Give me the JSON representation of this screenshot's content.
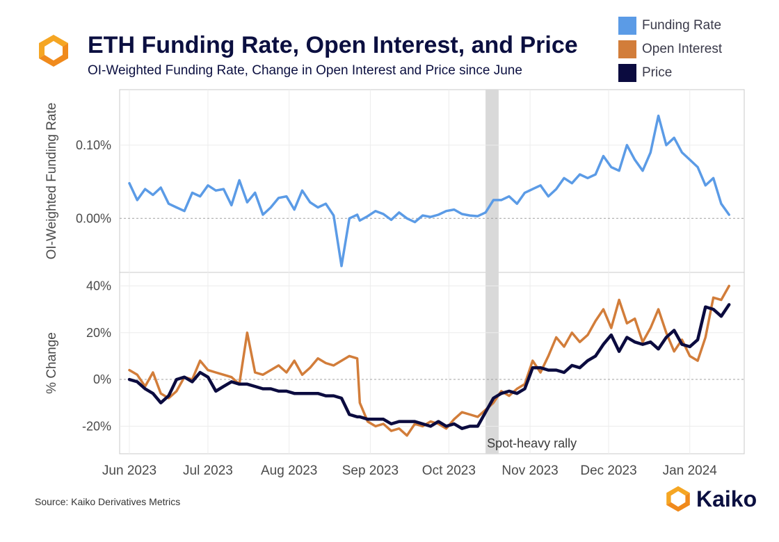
{
  "header": {
    "title": "ETH Funding Rate, Open Interest, and Price",
    "subtitle": "OI-Weighted Funding Rate, Change in Open Interest and Price since June"
  },
  "legend": [
    {
      "label": "Funding Rate",
      "color": "#5b9be6"
    },
    {
      "label": "Open Interest",
      "color": "#d27d3a"
    },
    {
      "label": "Price",
      "color": "#0b0b3f"
    }
  ],
  "footer": {
    "source": "Source: Kaiko Derivatives Metrics",
    "brand": "Kaiko"
  },
  "chart_data": {
    "type": "line",
    "grid": true,
    "x_ticks": [
      "Jun 2023",
      "Jul 2023",
      "Aug 2023",
      "Sep 2023",
      "Oct 2023",
      "Nov 2023",
      "Dec 2023",
      "Jan 2024"
    ],
    "x_tick_days": [
      0,
      30,
      61,
      92,
      122,
      153,
      183,
      214
    ],
    "x_range_days": [
      0,
      230
    ],
    "annotation": {
      "label": "Spot-heavy rally",
      "day_start": 136,
      "day_end": 141
    },
    "panels": [
      {
        "ylabel": "OI-Weighted Funding Rate",
        "ylim": [
          -0.068,
          0.17
        ],
        "y_ticks": [
          0.0,
          0.1
        ],
        "y_tick_labels": [
          "0.00%",
          "0.10%"
        ],
        "series": [
          {
            "name": "Funding Rate",
            "color": "#5b9be6",
            "x": [
              0,
              3,
              6,
              9,
              12,
              15,
              18,
              21,
              24,
              27,
              30,
              33,
              36,
              39,
              42,
              45,
              48,
              51,
              54,
              57,
              60,
              63,
              66,
              69,
              72,
              75,
              78,
              81,
              84,
              87,
              88,
              91,
              94,
              97,
              100,
              103,
              106,
              109,
              112,
              115,
              118,
              121,
              124,
              127,
              130,
              133,
              136,
              139,
              142,
              145,
              148,
              151,
              154,
              157,
              160,
              163,
              166,
              169,
              172,
              175,
              178,
              181,
              184,
              187,
              190,
              193,
              196,
              199,
              202,
              205,
              208,
              211,
              214,
              217,
              220,
              223,
              226,
              229
            ],
            "y": [
              0.048,
              0.025,
              0.04,
              0.032,
              0.042,
              0.02,
              0.015,
              0.01,
              0.035,
              0.03,
              0.045,
              0.038,
              0.04,
              0.018,
              0.052,
              0.022,
              0.035,
              0.005,
              0.015,
              0.028,
              0.03,
              0.012,
              0.038,
              0.022,
              0.015,
              0.02,
              0.004,
              -0.065,
              0.0,
              0.005,
              -0.003,
              0.003,
              0.01,
              0.006,
              -0.002,
              0.008,
              0.0,
              -0.005,
              0.004,
              0.002,
              0.005,
              0.01,
              0.012,
              0.006,
              0.004,
              0.003,
              0.008,
              0.025,
              0.025,
              0.03,
              0.02,
              0.035,
              0.04,
              0.045,
              0.03,
              0.04,
              0.055,
              0.048,
              0.06,
              0.055,
              0.06,
              0.085,
              0.07,
              0.065,
              0.1,
              0.08,
              0.065,
              0.09,
              0.14,
              0.1,
              0.11,
              0.09,
              0.08,
              0.07,
              0.045,
              0.055,
              0.02,
              0.005
            ]
          }
        ]
      },
      {
        "ylabel": "% Change",
        "ylim": [
          -30,
          44
        ],
        "y_ticks": [
          -20,
          0,
          20,
          40
        ],
        "y_tick_labels": [
          "-20%",
          "0%",
          "20%",
          "40%"
        ],
        "series": [
          {
            "name": "Open Interest",
            "color": "#d27d3a",
            "x": [
              0,
              3,
              6,
              9,
              12,
              15,
              18,
              21,
              24,
              27,
              30,
              33,
              36,
              39,
              42,
              45,
              48,
              51,
              54,
              57,
              60,
              63,
              66,
              69,
              72,
              75,
              78,
              81,
              84,
              87,
              88,
              91,
              94,
              97,
              100,
              103,
              106,
              109,
              112,
              115,
              118,
              121,
              124,
              127,
              130,
              133,
              136,
              139,
              142,
              145,
              148,
              151,
              154,
              157,
              160,
              163,
              166,
              169,
              172,
              175,
              178,
              181,
              184,
              187,
              190,
              193,
              196,
              199,
              202,
              205,
              208,
              211,
              214,
              217,
              220,
              223,
              226,
              229
            ],
            "y": [
              4,
              2,
              -3,
              3,
              -6,
              -8,
              -5,
              1,
              0,
              8,
              4,
              3,
              2,
              1,
              -2,
              20,
              3,
              2,
              4,
              6,
              3,
              8,
              2,
              5,
              9,
              7,
              6,
              8,
              10,
              9,
              -10,
              -18,
              -20,
              -19,
              -22,
              -21,
              -24,
              -19,
              -20,
              -18,
              -19,
              -21,
              -17,
              -14,
              -15,
              -16,
              -13,
              -10,
              -5,
              -7,
              -4,
              -2,
              8,
              3,
              10,
              18,
              14,
              20,
              16,
              19,
              25,
              30,
              22,
              34,
              24,
              26,
              16,
              22,
              30,
              20,
              12,
              17,
              10,
              8,
              18,
              35,
              34,
              40
            ]
          },
          {
            "name": "Price",
            "color": "#0b0b3f",
            "x": [
              0,
              3,
              6,
              9,
              12,
              15,
              18,
              21,
              24,
              27,
              30,
              33,
              36,
              39,
              42,
              45,
              48,
              51,
              54,
              57,
              60,
              63,
              66,
              69,
              72,
              75,
              78,
              81,
              84,
              87,
              88,
              91,
              94,
              97,
              100,
              103,
              106,
              109,
              112,
              115,
              118,
              121,
              124,
              127,
              130,
              133,
              136,
              139,
              142,
              145,
              148,
              151,
              154,
              157,
              160,
              163,
              166,
              169,
              172,
              175,
              178,
              181,
              184,
              187,
              190,
              193,
              196,
              199,
              202,
              205,
              208,
              211,
              214,
              217,
              220,
              223,
              226,
              229
            ],
            "y": [
              0,
              -1,
              -4,
              -6,
              -10,
              -7,
              0,
              1,
              -1,
              3,
              1,
              -5,
              -3,
              -1,
              -2,
              -2,
              -3,
              -4,
              -4,
              -5,
              -5,
              -6,
              -6,
              -6,
              -6,
              -7,
              -7,
              -8,
              -15,
              -16,
              -16,
              -17,
              -17,
              -17,
              -19,
              -18,
              -18,
              -18,
              -19,
              -20,
              -18,
              -20,
              -19,
              -21,
              -20,
              -20,
              -14,
              -8,
              -6,
              -5,
              -6,
              -4,
              5,
              5,
              4,
              4,
              3,
              6,
              5,
              8,
              10,
              15,
              19,
              12,
              18,
              16,
              15,
              16,
              13,
              18,
              21,
              15,
              14,
              17,
              31,
              30,
              27,
              32
            ]
          }
        ]
      }
    ]
  }
}
